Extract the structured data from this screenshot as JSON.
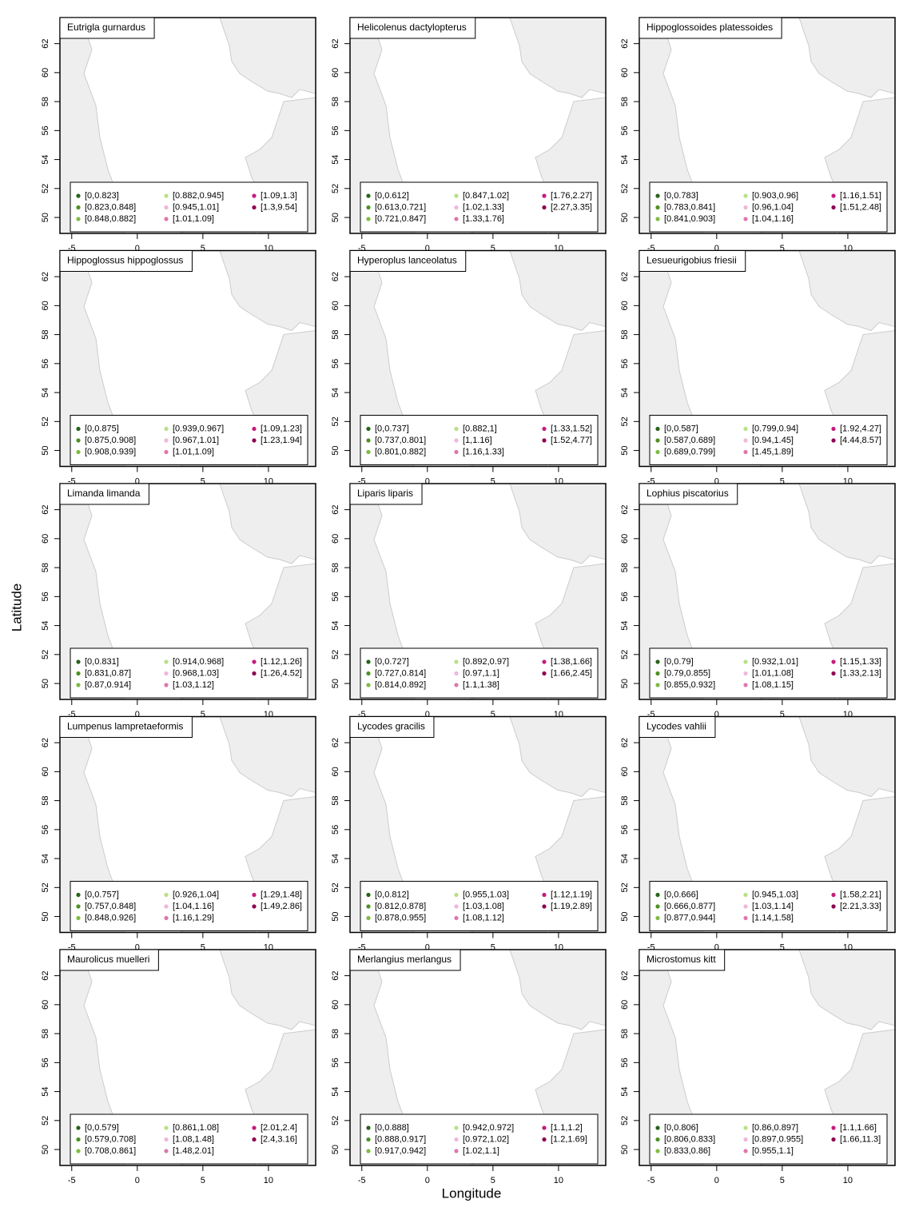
{
  "figure": {
    "x_label": "Longitude",
    "y_label": "Latitude",
    "xlim": [
      -5.9,
      13.6
    ],
    "ylim": [
      48.9,
      63.8
    ],
    "xticks": [
      -5,
      0,
      5,
      10
    ],
    "yticks": [
      50,
      52,
      54,
      56,
      58,
      60,
      62
    ],
    "colors": [
      "#276419",
      "#4d9221",
      "#7fbc41",
      "#b8e186",
      "#f1b6da",
      "#de77ae",
      "#c51b7d",
      "#8e0152"
    ]
  },
  "panels": [
    {
      "title": "Eutrigla gurnardus",
      "legend": [
        "[0,0.823]",
        "[0.823,0.848]",
        "[0.848,0.882]",
        "[0.882,0.945]",
        "[0.945,1.01]",
        "[1.01,1.09]",
        "[1.09,1.3]",
        "[1.3,9.54]"
      ]
    },
    {
      "title": "Helicolenus dactylopterus",
      "legend": [
        "[0,0.612]",
        "[0.613,0.721]",
        "[0.721,0.847]",
        "[0.847,1.02]",
        "[1.02,1.33]",
        "[1.33,1.76]",
        "[1.76,2.27]",
        "[2.27,3.35]"
      ]
    },
    {
      "title": "Hippoglossoides platessoides",
      "legend": [
        "[0,0.783]",
        "[0.783,0.841]",
        "[0.841,0.903]",
        "[0.903,0.96]",
        "[0.96,1.04]",
        "[1.04,1.16]",
        "[1.16,1.51]",
        "[1.51,2.48]"
      ]
    },
    {
      "title": "Hippoglossus hippoglossus",
      "legend": [
        "[0,0.875]",
        "[0.875,0.908]",
        "[0.908,0.939]",
        "[0.939,0.967]",
        "[0.967,1.01]",
        "[1.01,1.09]",
        "[1.09,1.23]",
        "[1.23,1.94]"
      ]
    },
    {
      "title": "Hyperoplus lanceolatus",
      "legend": [
        "[0,0.737]",
        "[0.737,0.801]",
        "[0.801,0.882]",
        "[0.882,1]",
        "[1,1.16]",
        "[1.16,1.33]",
        "[1.33,1.52]",
        "[1.52,4.77]"
      ]
    },
    {
      "title": "Lesueurigobius friesii",
      "legend": [
        "[0,0.587]",
        "[0.587,0.689]",
        "[0.689,0.799]",
        "[0.799,0.94]",
        "[0.94,1.45]",
        "[1.45,1.89]",
        "[1.92,4.27]",
        "[4.44,8.57]"
      ]
    },
    {
      "title": "Limanda limanda",
      "legend": [
        "[0,0.831]",
        "[0.831,0.87]",
        "[0.87,0.914]",
        "[0.914,0.968]",
        "[0.968,1.03]",
        "[1.03,1.12]",
        "[1.12,1.26]",
        "[1.26,4.52]"
      ]
    },
    {
      "title": "Liparis liparis",
      "legend": [
        "[0,0.727]",
        "[0.727,0.814]",
        "[0.814,0.892]",
        "[0.892,0.97]",
        "[0.97,1.1]",
        "[1.1,1.38]",
        "[1.38,1.66]",
        "[1.66,2.45]"
      ]
    },
    {
      "title": "Lophius piscatorius",
      "legend": [
        "[0,0.79]",
        "[0.79,0.855]",
        "[0.855,0.932]",
        "[0.932,1.01]",
        "[1.01,1.08]",
        "[1.08,1.15]",
        "[1.15,1.33]",
        "[1.33,2.13]"
      ]
    },
    {
      "title": "Lumpenus lampretaeformis",
      "legend": [
        "[0,0.757]",
        "[0.757,0.848]",
        "[0.848,0.926]",
        "[0.926,1.04]",
        "[1.04,1.16]",
        "[1.16,1.29]",
        "[1.29,1.48]",
        "[1.49,2.86]"
      ]
    },
    {
      "title": "Lycodes gracilis",
      "legend": [
        "[0,0.812]",
        "[0.812,0.878]",
        "[0.878,0.955]",
        "[0.955,1.03]",
        "[1.03,1.08]",
        "[1.08,1.12]",
        "[1.12,1.19]",
        "[1.19,2.89]"
      ]
    },
    {
      "title": "Lycodes vahlii",
      "legend": [
        "[0,0.666]",
        "[0.666,0.877]",
        "[0.877,0.944]",
        "[0.945,1.03]",
        "[1.03,1.14]",
        "[1.14,1.58]",
        "[1.58,2.21]",
        "[2.21,3.33]"
      ]
    },
    {
      "title": "Maurolicus muelleri",
      "legend": [
        "[0,0.579]",
        "[0.579,0.708]",
        "[0.708,0.861]",
        "[0.861,1.08]",
        "[1.08,1.48]",
        "[1.48,2.01]",
        "[2.01,2.4]",
        "[2.4,3.16]"
      ]
    },
    {
      "title": "Merlangius merlangus",
      "legend": [
        "[0,0.888]",
        "[0.888,0.917]",
        "[0.917,0.942]",
        "[0.942,0.972]",
        "[0.972,1.02]",
        "[1.02,1.1]",
        "[1.1,1.2]",
        "[1.2,1.69]"
      ]
    },
    {
      "title": "Microstomus kitt",
      "legend": [
        "[0,0.806]",
        "[0.806,0.833]",
        "[0.833,0.86]",
        "[0.86,0.897]",
        "[0.897,0.955]",
        "[0.955,1.1]",
        "[1.1,1.66]",
        "[1.66,11.3]"
      ]
    }
  ]
}
